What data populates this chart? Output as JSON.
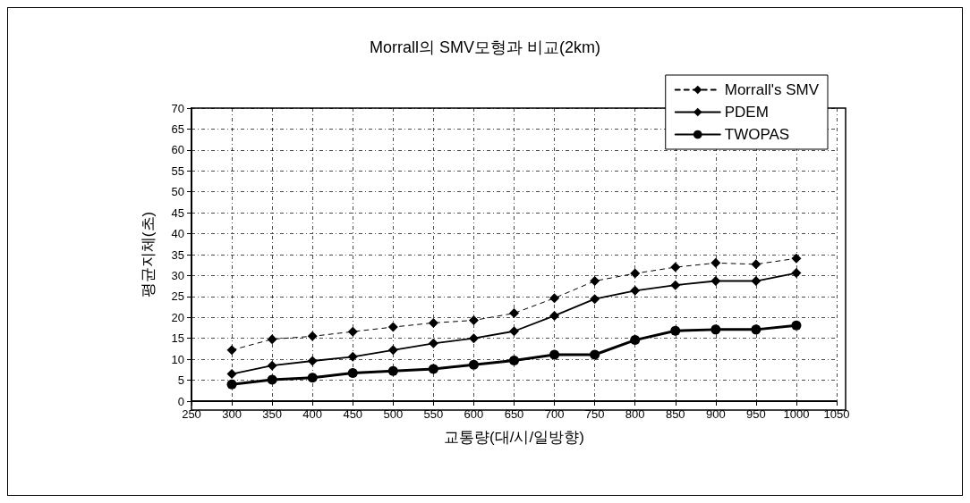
{
  "chart_data": {
    "type": "line",
    "title": "Morrall의 SMV모형과 비교(2km)",
    "xlabel": "교통량(대/시/일방향)",
    "ylabel": "평균지체(초)",
    "x": [
      300,
      350,
      400,
      450,
      500,
      550,
      600,
      650,
      700,
      750,
      800,
      850,
      900,
      950,
      1000
    ],
    "xlim": [
      250,
      1050
    ],
    "xticks": [
      250,
      300,
      350,
      400,
      450,
      500,
      550,
      600,
      650,
      700,
      750,
      800,
      850,
      900,
      950,
      1000,
      1050
    ],
    "ylim": [
      0,
      70
    ],
    "yticks": [
      0,
      5,
      10,
      15,
      20,
      25,
      30,
      35,
      40,
      45,
      50,
      55,
      60,
      65,
      70
    ],
    "grid": true,
    "legend": "top right",
    "series": [
      {
        "name": "Morrall's SMV",
        "color": "#000000",
        "marker": "diamond",
        "line_style": "dashed",
        "values": [
          12.2,
          14.8,
          15.5,
          16.6,
          17.7,
          18.7,
          19.3,
          21,
          24.6,
          28.7,
          30.5,
          32,
          33,
          32.7,
          34.1
        ]
      },
      {
        "name": "PDEM",
        "color": "#000000",
        "marker": "diamond",
        "line_style": "solid",
        "values": [
          6.5,
          8.5,
          9.6,
          10.6,
          12.2,
          13.8,
          15,
          16.7,
          20.4,
          24.4,
          26.4,
          27.7,
          28.7,
          28.7,
          30.6
        ]
      },
      {
        "name": "TWOPAS",
        "color": "#000000",
        "marker": "circle",
        "line_style": "solid",
        "values": [
          4,
          5.1,
          5.6,
          6.7,
          7.2,
          7.7,
          8.7,
          9.7,
          11.1,
          11.1,
          14.6,
          16.8,
          17.1,
          17.1,
          18.1
        ]
      }
    ]
  }
}
